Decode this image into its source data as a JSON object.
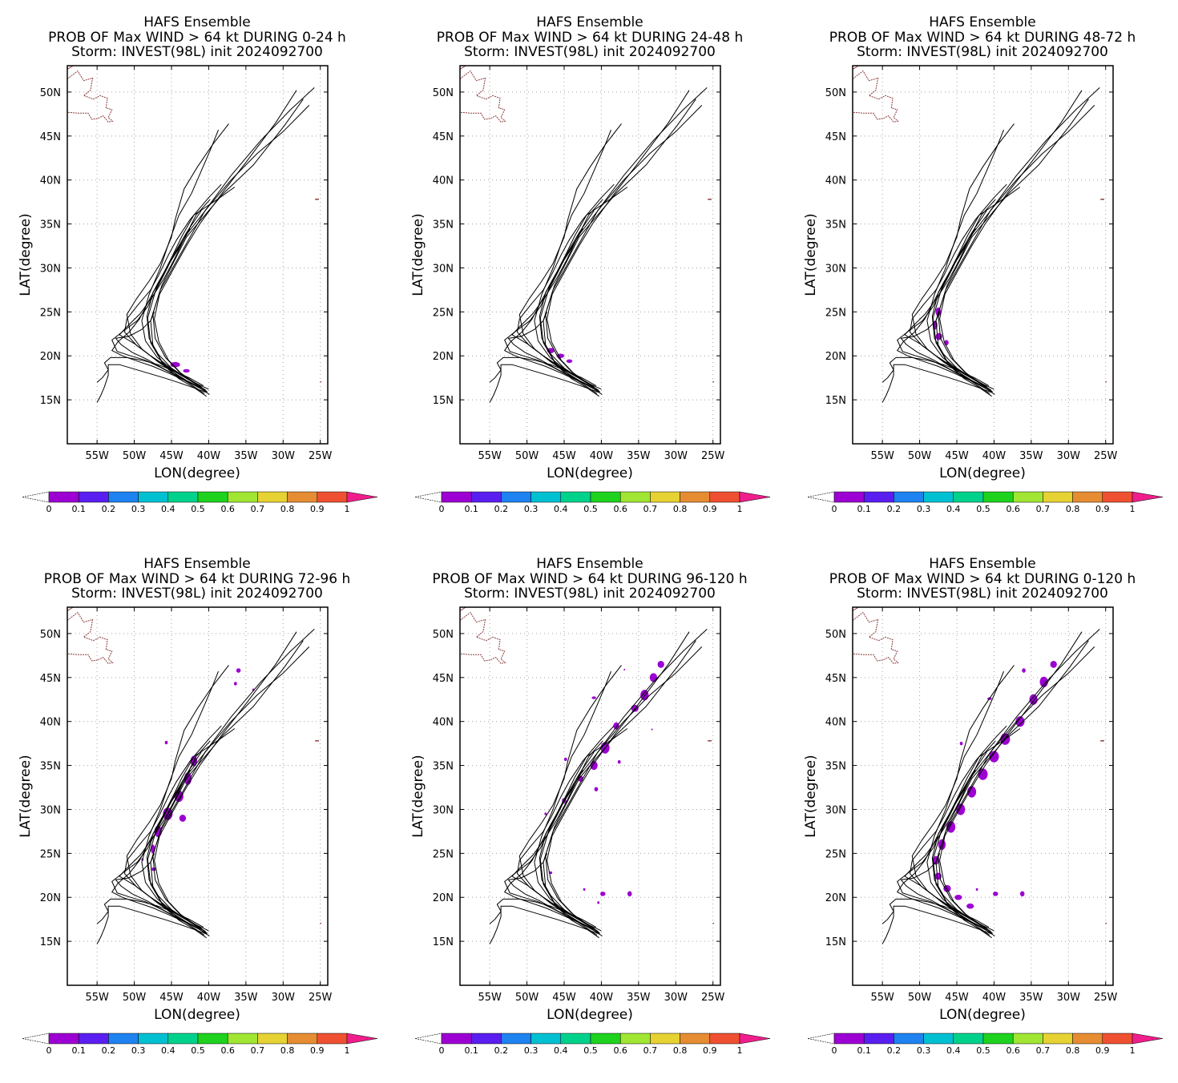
{
  "panels": [
    {
      "title_line1": "HAFS Ensemble",
      "title_line2": "PROB OF Max WIND > 64 kt DURING  0-24 h",
      "title_line3": "Storm: INVEST(98L) init 2024092700",
      "prob_patches": [
        [
          -44.5,
          19.0,
          1.3,
          0.6
        ],
        [
          -43.0,
          18.3,
          0.9,
          0.4
        ]
      ]
    },
    {
      "title_line1": "HAFS Ensemble",
      "title_line2": "PROB OF Max WIND > 64 kt DURING 24-48 h",
      "title_line3": "Storm: INVEST(98L) init 2024092700",
      "prob_patches": [
        [
          -46.8,
          20.6,
          1.0,
          0.6
        ],
        [
          -45.5,
          20.0,
          1.0,
          0.5
        ],
        [
          -44.3,
          19.4,
          0.8,
          0.4
        ]
      ]
    },
    {
      "title_line1": "HAFS Ensemble",
      "title_line2": "PROB OF Max WIND > 64 kt DURING 48-72 h",
      "title_line3": "Storm: INVEST(98L) init 2024092700",
      "prob_patches": [
        [
          -47.5,
          25.0,
          0.7,
          1.0
        ],
        [
          -47.9,
          23.5,
          0.6,
          1.0
        ],
        [
          -47.4,
          22.2,
          0.9,
          0.8
        ],
        [
          -46.4,
          21.5,
          0.6,
          0.6
        ]
      ]
    },
    {
      "title_line1": "HAFS Ensemble",
      "title_line2": "PROB OF Max WIND > 64 kt DURING 72-96 h",
      "title_line3": "Storm: INVEST(98L) init 2024092700",
      "prob_patches": [
        [
          -42.0,
          35.5,
          0.9,
          1.2
        ],
        [
          -42.8,
          33.5,
          1.0,
          1.4
        ],
        [
          -44.0,
          31.5,
          1.2,
          1.3
        ],
        [
          -45.5,
          29.5,
          1.3,
          1.4
        ],
        [
          -46.8,
          27.5,
          1.0,
          1.3
        ],
        [
          -47.5,
          25.5,
          0.6,
          1.0
        ],
        [
          -43.5,
          29.0,
          0.9,
          0.8
        ],
        [
          -47.4,
          23.2,
          0.6,
          0.4
        ],
        [
          -48.9,
          24.3,
          0.3,
          0.3
        ],
        [
          -45.7,
          37.6,
          0.4,
          0.4
        ],
        [
          -36.0,
          45.8,
          0.6,
          0.5
        ],
        [
          -36.4,
          44.3,
          0.4,
          0.4
        ],
        [
          -34.0,
          43.6,
          0.3,
          0.3
        ]
      ]
    },
    {
      "title_line1": "HAFS Ensemble",
      "title_line2": "PROB OF Max WIND > 64 kt DURING 96-120 h",
      "title_line3": "Storm: INVEST(98L) init 2024092700",
      "prob_patches": [
        [
          -32.0,
          46.5,
          0.9,
          0.8
        ],
        [
          -33.0,
          45.0,
          1.0,
          1.0
        ],
        [
          -34.2,
          43.0,
          1.1,
          1.2
        ],
        [
          -35.5,
          41.5,
          1.0,
          0.8
        ],
        [
          -38.0,
          39.5,
          0.8,
          0.8
        ],
        [
          -39.5,
          37.0,
          1.2,
          1.3
        ],
        [
          -41.0,
          35.0,
          1.0,
          1.0
        ],
        [
          -42.8,
          33.5,
          0.7,
          0.7
        ],
        [
          -45.0,
          31.0,
          0.6,
          0.6
        ],
        [
          -47.5,
          29.5,
          0.3,
          0.3
        ],
        [
          -40.7,
          32.3,
          0.5,
          0.5
        ],
        [
          -37.6,
          35.4,
          0.4,
          0.4
        ],
        [
          -41.0,
          42.7,
          0.6,
          0.3
        ],
        [
          -44.8,
          35.7,
          0.4,
          0.4
        ],
        [
          -46.8,
          22.8,
          0.4,
          0.3
        ],
        [
          -42.3,
          20.9,
          0.3,
          0.3
        ],
        [
          -39.8,
          20.4,
          0.7,
          0.5
        ],
        [
          -36.2,
          20.4,
          0.6,
          0.6
        ],
        [
          -40.4,
          19.4,
          0.3,
          0.3
        ],
        [
          -33.2,
          39.1,
          0.2,
          0.2
        ],
        [
          -36.9,
          45.9,
          0.2,
          0.2
        ]
      ]
    },
    {
      "title_line1": "HAFS Ensemble",
      "title_line2": "PROB OF Max WIND > 64 kt DURING 0-120 h",
      "title_line3": "Storm: INVEST(98L) init 2024092700",
      "prob_patches": [
        [
          -32.0,
          46.5,
          0.9,
          0.8
        ],
        [
          -33.3,
          44.5,
          1.1,
          1.2
        ],
        [
          -34.7,
          42.5,
          1.1,
          1.2
        ],
        [
          -36.5,
          40.0,
          1.2,
          1.2
        ],
        [
          -38.5,
          38.0,
          1.3,
          1.3
        ],
        [
          -40.0,
          36.0,
          1.3,
          1.3
        ],
        [
          -41.5,
          34.0,
          1.3,
          1.3
        ],
        [
          -43.0,
          32.0,
          1.2,
          1.3
        ],
        [
          -44.5,
          30.0,
          1.2,
          1.3
        ],
        [
          -45.8,
          28.0,
          1.2,
          1.3
        ],
        [
          -47.0,
          26.0,
          1.0,
          1.2
        ],
        [
          -47.8,
          24.2,
          0.8,
          1.0
        ],
        [
          -47.5,
          22.4,
          0.9,
          0.8
        ],
        [
          -46.3,
          21.0,
          1.0,
          0.8
        ],
        [
          -44.8,
          20.0,
          1.0,
          0.6
        ],
        [
          -43.2,
          19.0,
          1.0,
          0.6
        ],
        [
          -39.8,
          20.4,
          0.7,
          0.5
        ],
        [
          -36.2,
          20.4,
          0.6,
          0.6
        ],
        [
          -42.3,
          20.9,
          0.3,
          0.3
        ],
        [
          -36.0,
          45.8,
          0.5,
          0.5
        ],
        [
          -40.6,
          42.6,
          0.6,
          0.3
        ],
        [
          -44.4,
          37.5,
          0.4,
          0.4
        ]
      ]
    }
  ],
  "axes": {
    "xlabel": "LON(degree)",
    "ylabel": "LAT(degree)",
    "xlim": [
      -59,
      -24
    ],
    "ylim": [
      10,
      53
    ],
    "xticks": [
      -55,
      -50,
      -45,
      -40,
      -35,
      -30,
      -25
    ],
    "xtick_labels": [
      "55W",
      "50W",
      "45W",
      "40W",
      "35W",
      "30W",
      "25W"
    ],
    "yticks": [
      15,
      20,
      25,
      30,
      35,
      40,
      45,
      50
    ],
    "ytick_labels": [
      "15N",
      "20N",
      "25N",
      "30N",
      "35N",
      "40N",
      "45N",
      "50N"
    ]
  },
  "colorbar": {
    "levels": [
      0,
      0.1,
      0.2,
      0.3,
      0.4,
      0.5,
      0.6,
      0.7,
      0.8,
      0.9,
      1
    ],
    "level_labels": [
      "0",
      "0.1",
      "0.2",
      "0.3",
      "0.4",
      "0.5",
      "0.6",
      "0.7",
      "0.8",
      "0.9",
      "1"
    ],
    "colors": [
      "#9c00d2",
      "#5a1ef0",
      "#1e82f0",
      "#00c0d2",
      "#00d28c",
      "#1ed21e",
      "#a0e632",
      "#e6d232",
      "#e68c32",
      "#f05032"
    ],
    "under_color": "#ffffff",
    "over_color": "#f01e8c"
  },
  "colors": {
    "track": "#000000",
    "coast": "#8c3c3c",
    "grid": "#a0a0a0",
    "probability_fill": "#9c00d2"
  },
  "tracks": [
    [
      [
        -40.3,
        15.4
      ],
      [
        -42.0,
        16.4
      ],
      [
        -44.0,
        17.4
      ],
      [
        -46.0,
        18.9
      ],
      [
        -47.5,
        21.2
      ],
      [
        -47.8,
        24.0
      ],
      [
        -46.5,
        27.5
      ],
      [
        -44.5,
        30.5
      ],
      [
        -42.5,
        33.5
      ],
      [
        -40.5,
        36.5
      ],
      [
        -37.0,
        40.5
      ],
      [
        -33.0,
        44.5
      ],
      [
        -29.0,
        48.0
      ],
      [
        -25.8,
        50.5
      ]
    ],
    [
      [
        -40.6,
        15.7
      ],
      [
        -42.3,
        16.7
      ],
      [
        -44.3,
        17.8
      ],
      [
        -46.3,
        19.3
      ],
      [
        -47.8,
        21.5
      ],
      [
        -48.2,
        24.3
      ],
      [
        -47.0,
        27.8
      ],
      [
        -45.0,
        31.0
      ],
      [
        -42.8,
        34.0
      ],
      [
        -40.0,
        37.0
      ],
      [
        -37.0,
        40.0
      ],
      [
        -33.5,
        43.0
      ],
      [
        -30.0,
        45.5
      ],
      [
        -26.5,
        48.5
      ]
    ],
    [
      [
        -40.2,
        15.9
      ],
      [
        -41.8,
        16.9
      ],
      [
        -43.7,
        18.0
      ],
      [
        -45.4,
        19.5
      ],
      [
        -46.7,
        21.6
      ],
      [
        -47.3,
        24.2
      ],
      [
        -46.6,
        27.0
      ],
      [
        -44.8,
        29.8
      ],
      [
        -43.0,
        32.5
      ],
      [
        -41.2,
        35.0
      ],
      [
        -38.2,
        38.5
      ],
      [
        -35.0,
        42.0
      ],
      [
        -31.0,
        46.5
      ],
      [
        -28.2,
        50.2
      ]
    ],
    [
      [
        -40.4,
        16.1
      ],
      [
        -42.1,
        17.0
      ],
      [
        -44.0,
        18.2
      ],
      [
        -45.8,
        19.8
      ],
      [
        -47.2,
        22.0
      ],
      [
        -47.5,
        24.8
      ],
      [
        -46.3,
        28.0
      ],
      [
        -44.5,
        31.0
      ],
      [
        -43.0,
        33.5
      ],
      [
        -41.0,
        35.5
      ],
      [
        -38.0,
        38.5
      ],
      [
        -34.0,
        41.7
      ],
      [
        -29.8,
        46.2
      ],
      [
        -27.3,
        49.2
      ]
    ],
    [
      [
        -40.0,
        16.2
      ],
      [
        -41.5,
        16.8
      ],
      [
        -43.2,
        17.6
      ],
      [
        -45.0,
        18.6
      ],
      [
        -46.8,
        20.2
      ],
      [
        -48.0,
        22.0
      ],
      [
        -48.3,
        24.5
      ],
      [
        -47.5,
        27.2
      ],
      [
        -46.0,
        29.5
      ],
      [
        -44.8,
        31.5
      ],
      [
        -43.6,
        33.6
      ],
      [
        -42.0,
        36.0
      ],
      [
        -38.5,
        38.0
      ],
      [
        -36.5,
        39.2
      ]
    ],
    [
      [
        -40.8,
        16.3
      ],
      [
        -42.7,
        17.3
      ],
      [
        -44.8,
        18.4
      ],
      [
        -46.9,
        19.8
      ],
      [
        -48.5,
        21.7
      ],
      [
        -49.0,
        24.0
      ],
      [
        -48.0,
        27.0
      ],
      [
        -46.5,
        30.0
      ],
      [
        -45.3,
        33.0
      ],
      [
        -44.0,
        36.0
      ],
      [
        -42.3,
        38.5
      ],
      [
        -40.5,
        42.0
      ],
      [
        -39.5,
        44.0
      ],
      [
        -38.7,
        45.7
      ]
    ],
    [
      [
        -40.5,
        16.0
      ],
      [
        -42.4,
        16.9
      ],
      [
        -44.5,
        18.0
      ],
      [
        -46.8,
        19.3
      ],
      [
        -49.0,
        20.8
      ],
      [
        -50.5,
        22.5
      ],
      [
        -51.0,
        24.7
      ],
      [
        -49.7,
        26.5
      ],
      [
        -48.0,
        28.5
      ],
      [
        -46.5,
        30.5
      ],
      [
        -45.5,
        32.5
      ],
      [
        -45.0,
        33.5
      ],
      [
        -44.5,
        35.5
      ],
      [
        -43.3,
        39.0
      ],
      [
        -41.5,
        41.5
      ],
      [
        -39.5,
        44.0
      ],
      [
        -37.3,
        46.4
      ]
    ],
    [
      [
        -40.9,
        16.4
      ],
      [
        -42.9,
        17.4
      ],
      [
        -45.2,
        18.5
      ],
      [
        -47.5,
        19.8
      ],
      [
        -49.7,
        21.2
      ],
      [
        -51.3,
        22.7
      ],
      [
        -51.0,
        24.2
      ],
      [
        -49.5,
        25.8
      ],
      [
        -47.8,
        27.5
      ],
      [
        -46.7,
        29.2
      ],
      [
        -45.4,
        31.5
      ],
      [
        -44.3,
        33.2
      ],
      [
        -42.5,
        35.5
      ],
      [
        -40.0,
        38.0
      ],
      [
        -38.3,
        39.5
      ]
    ],
    [
      [
        -41.0,
        16.5
      ],
      [
        -43.3,
        17.6
      ],
      [
        -45.6,
        18.8
      ],
      [
        -47.8,
        20.0
      ],
      [
        -50.0,
        21.4
      ],
      [
        -52.0,
        22.4
      ],
      [
        -51.0,
        23.3
      ],
      [
        -49.2,
        24.8
      ],
      [
        -47.5,
        26.8
      ],
      [
        -46.0,
        28.8
      ],
      [
        -44.6,
        31.0
      ],
      [
        -43.2,
        33.5
      ],
      [
        -41.7,
        36.0
      ],
      [
        -39.8,
        37.8
      ]
    ],
    [
      [
        -40.6,
        16.2
      ],
      [
        -42.5,
        17.0
      ],
      [
        -44.5,
        17.8
      ],
      [
        -46.5,
        18.7
      ],
      [
        -48.5,
        19.5
      ],
      [
        -50.5,
        20.0
      ],
      [
        -52.3,
        20.5
      ],
      [
        -53.0,
        21.8
      ],
      [
        -51.5,
        22.8
      ],
      [
        -49.6,
        24.0
      ],
      [
        -48.2,
        25.6
      ],
      [
        -47.0,
        27.6
      ],
      [
        -45.8,
        29.6
      ],
      [
        -44.5,
        31.8
      ],
      [
        -43.0,
        34.0
      ],
      [
        -41.0,
        36.5
      ]
    ],
    [
      [
        -39.9,
        15.6
      ],
      [
        -41.3,
        16.4
      ],
      [
        -43.2,
        17.2
      ],
      [
        -45.3,
        18.0
      ],
      [
        -47.5,
        18.8
      ],
      [
        -49.6,
        19.4
      ],
      [
        -51.6,
        20.0
      ],
      [
        -53.0,
        20.6
      ],
      [
        -52.2,
        21.6
      ],
      [
        -50.7,
        22.7
      ],
      [
        -49.3,
        24.2
      ],
      [
        -48.2,
        26.0
      ],
      [
        -46.8,
        28.3
      ],
      [
        -45.3,
        30.5
      ],
      [
        -43.8,
        32.5
      ],
      [
        -42.5,
        34.5
      ]
    ],
    [
      [
        -40.2,
        15.8
      ],
      [
        -41.8,
        16.3
      ],
      [
        -43.8,
        16.9
      ],
      [
        -46.0,
        17.5
      ],
      [
        -48.0,
        18.0
      ],
      [
        -50.0,
        18.5
      ],
      [
        -52.0,
        19.0
      ],
      [
        -53.5,
        19.0
      ],
      [
        -53.5,
        17.8
      ],
      [
        -54.0,
        16.5
      ],
      [
        -54.5,
        15.5
      ],
      [
        -55.0,
        14.7
      ]
    ],
    [
      [
        -40.7,
        16.6
      ],
      [
        -42.6,
        17.5
      ],
      [
        -44.7,
        18.3
      ],
      [
        -46.8,
        19.0
      ],
      [
        -49.0,
        19.5
      ],
      [
        -51.0,
        19.8
      ],
      [
        -53.2,
        19.8
      ],
      [
        -54.0,
        19.2
      ],
      [
        -53.5,
        18.4
      ],
      [
        -54.3,
        17.5
      ],
      [
        -55.0,
        17.0
      ]
    ],
    [
      [
        -40.3,
        15.9
      ],
      [
        -42.0,
        16.7
      ],
      [
        -44.0,
        17.6
      ],
      [
        -46.2,
        18.6
      ],
      [
        -48.3,
        19.6
      ],
      [
        -50.3,
        20.4
      ],
      [
        -51.8,
        21.3
      ],
      [
        -52.5,
        22.0
      ],
      [
        -50.8,
        22.2
      ],
      [
        -49.0,
        23.0
      ],
      [
        -47.8,
        24.0
      ],
      [
        -47.3,
        25.0
      ]
    ]
  ]
}
